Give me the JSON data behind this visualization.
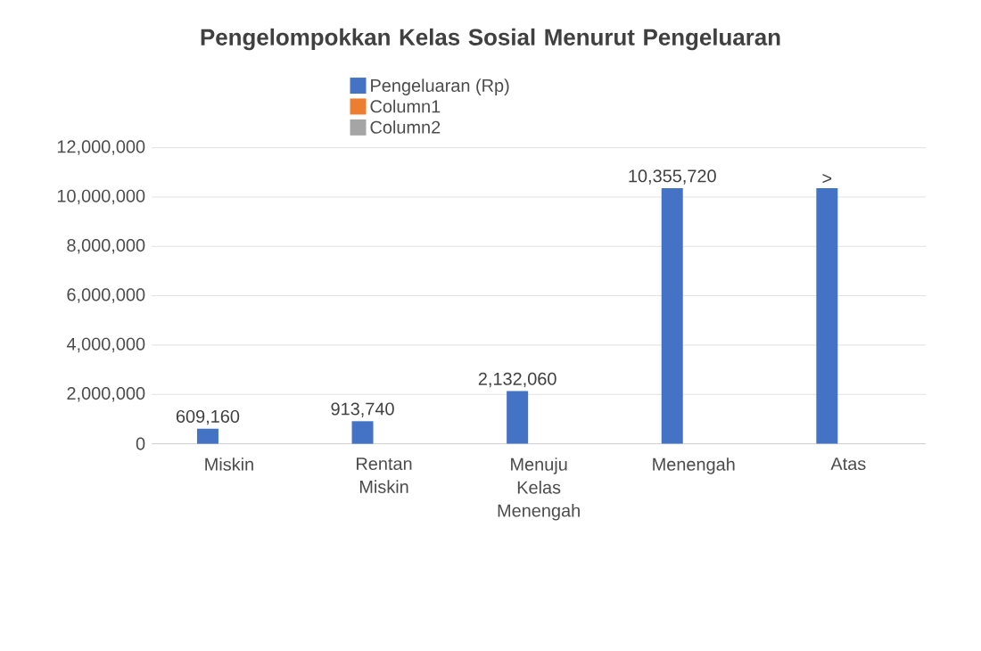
{
  "chart_data": {
    "type": "bar",
    "title": "Pengelompokkan Kelas Sosial Menurut Pengeluaran",
    "categories": [
      "Miskin",
      "Rentan Miskin",
      "Menuju Kelas Menengah",
      "Menengah",
      "Atas"
    ],
    "series": [
      {
        "name": "Pengeluaran (Rp)",
        "color": "#4472c4",
        "values": [
          609160,
          913740,
          2132060,
          10355720,
          10355720
        ],
        "value_labels": [
          "609,160",
          "913,740",
          "2,132,060",
          "10,355,720",
          ">"
        ]
      },
      {
        "name": "Column1",
        "color": "#ed7d31",
        "values": [
          null,
          null,
          null,
          null,
          null
        ]
      },
      {
        "name": "Column2",
        "color": "#a5a5a5",
        "values": [
          null,
          null,
          null,
          null,
          null
        ]
      }
    ],
    "ylim": [
      0,
      12000000
    ],
    "yticks": [
      {
        "value": 0,
        "label": "0"
      },
      {
        "value": 2000000,
        "label": "2,000,000"
      },
      {
        "value": 4000000,
        "label": "4,000,000"
      },
      {
        "value": 6000000,
        "label": "6,000,000"
      },
      {
        "value": 8000000,
        "label": "8,000,000"
      },
      {
        "value": 10000000,
        "label": "10,000,000"
      },
      {
        "value": 12000000,
        "label": "12,000,000"
      }
    ],
    "grid": "y",
    "legend": "top"
  }
}
